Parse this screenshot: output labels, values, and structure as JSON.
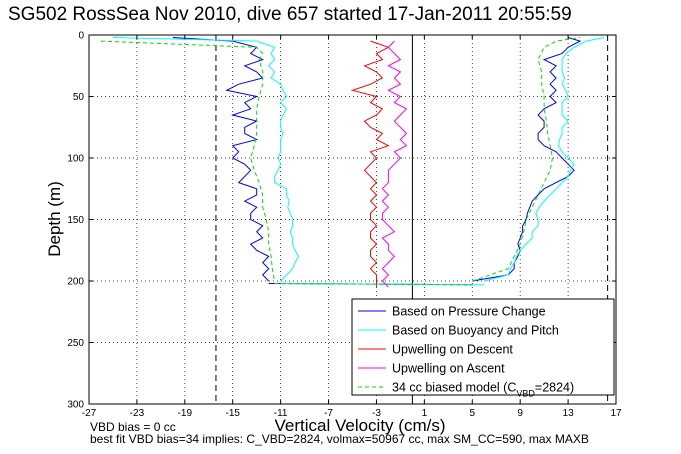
{
  "chart_data": {
    "type": "line",
    "title": "SG502 RossSea Nov 2010, dive 657 started 17-Jan-2011 20:55:59",
    "xlabel": "Vertical Velocity (cm/s)",
    "ylabel": "Depth (m)",
    "xlim": [
      -27,
      17
    ],
    "ylim": [
      0,
      300
    ],
    "y_reversed": true,
    "grid": true,
    "xticks": [
      "-27",
      "-23",
      "-19",
      "-15",
      "-11",
      "-7",
      "-3",
      "1",
      "5",
      "9",
      "13",
      "17"
    ],
    "yticks": [
      "0",
      "50",
      "100",
      "150",
      "200",
      "250",
      "300"
    ],
    "reference_lines": {
      "dashed_black_x": [
        -16.4,
        16.3
      ],
      "solid_black_x": [
        0
      ]
    },
    "legend_location": "bottom-right",
    "legend": [
      {
        "label": "Based on Pressure Change",
        "color": "#0000ff",
        "style": "solid"
      },
      {
        "label": "Based on Buoyancy and Pitch",
        "color": "#00ffff",
        "style": "solid"
      },
      {
        "label": "Upwelling on Descent",
        "color": "#ff0000",
        "style": "solid"
      },
      {
        "label": "Upwelling on Ascent",
        "color": "#ff00ff",
        "style": "solid"
      },
      {
        "label": "34 cc biased model (C",
        "label_sub": "VBD",
        "label_end": "=2824)",
        "color": "#00dd00",
        "style": "dashed"
      }
    ],
    "series": [
      {
        "name": "Based on Pressure Change",
        "color": "#0000ff",
        "descent": {
          "depth": [
            2,
            5,
            10,
            15,
            20,
            25,
            30,
            35,
            40,
            45,
            50,
            55,
            60,
            65,
            70,
            75,
            80,
            85,
            90,
            95,
            100,
            105,
            110,
            115,
            120,
            125,
            130,
            135,
            140,
            145,
            150,
            155,
            160,
            165,
            170,
            175,
            180,
            185,
            190,
            195,
            200
          ],
          "velocity": [
            -20,
            -15,
            -13,
            -13.5,
            -12.5,
            -14,
            -13,
            -12.5,
            -14.5,
            -15.5,
            -13,
            -14,
            -13.5,
            -15,
            -13,
            -14,
            -14,
            -13,
            -15,
            -14.5,
            -15,
            -14,
            -13.5,
            -14,
            -14.5,
            -13,
            -13,
            -14,
            -13,
            -13.5,
            -13.5,
            -12.5,
            -13,
            -12.5,
            -13.5,
            -13,
            -12,
            -12.5,
            -12,
            -12.5,
            -12
          ]
        },
        "ascent": {
          "depth": [
            200,
            195,
            190,
            185,
            180,
            175,
            170,
            165,
            160,
            155,
            150,
            145,
            140,
            135,
            130,
            125,
            120,
            115,
            110,
            105,
            100,
            95,
            90,
            85,
            80,
            75,
            70,
            65,
            60,
            55,
            50,
            45,
            40,
            35,
            30,
            25,
            20,
            15,
            10,
            5,
            2
          ],
          "velocity": [
            5,
            8,
            8.5,
            8.5,
            8.8,
            9,
            8.8,
            9,
            9.2,
            9.2,
            9.5,
            9.6,
            9.8,
            10,
            10.5,
            11,
            12,
            13,
            13.5,
            13,
            12.5,
            12,
            11,
            10.5,
            10.5,
            11,
            11,
            10.5,
            11,
            12,
            11.5,
            12,
            11.5,
            12,
            11.5,
            12,
            11,
            12.5,
            13,
            14,
            13
          ]
        }
      },
      {
        "name": "Based on Buoyancy and Pitch",
        "color": "#00ffff",
        "descent": {
          "depth": [
            2,
            5,
            10,
            15,
            20,
            25,
            30,
            35,
            40,
            45,
            50,
            55,
            60,
            65,
            70,
            75,
            80,
            85,
            90,
            95,
            100,
            105,
            110,
            115,
            120,
            125,
            130,
            135,
            140,
            145,
            150,
            155,
            160,
            165,
            170,
            175,
            180,
            185,
            190,
            195,
            200
          ],
          "velocity": [
            -25,
            -13,
            -11.5,
            -11.8,
            -11.5,
            -12,
            -11.5,
            -11.8,
            -11,
            -10.8,
            -10.5,
            -11,
            -10.5,
            -10.8,
            -11,
            -11,
            -10.8,
            -11,
            -11,
            -11,
            -11.2,
            -11,
            -11.2,
            -11.5,
            -11.5,
            -10.5,
            -10.5,
            -10.3,
            -10.4,
            -10.2,
            -10,
            -10,
            -10.2,
            -10,
            -10,
            -9.8,
            -9.5,
            -9.8,
            -10,
            -10.5,
            -11
          ]
        },
        "ascent": {
          "depth": [
            200,
            195,
            190,
            185,
            180,
            175,
            170,
            165,
            160,
            155,
            150,
            145,
            140,
            135,
            130,
            125,
            120,
            115,
            110,
            105,
            100,
            95,
            90,
            85,
            80,
            75,
            70,
            65,
            60,
            55,
            50,
            45,
            40,
            35,
            30,
            25,
            20,
            15,
            10,
            5,
            2
          ],
          "velocity": [
            6,
            8,
            8.2,
            8.5,
            8.7,
            9,
            9.5,
            10,
            10,
            10.5,
            10.5,
            10.3,
            10.6,
            11,
            11.5,
            12,
            12.5,
            13,
            13.2,
            13.5,
            13,
            12.5,
            12.2,
            12.3,
            12.5,
            12.5,
            13,
            12.5,
            12.5,
            12.5,
            13,
            12.8,
            12.5,
            12.7,
            12.5,
            12.5,
            12.5,
            12.8,
            13.5,
            14.5,
            16
          ]
        }
      },
      {
        "name": "Upwelling on Descent",
        "color": "#ff0000",
        "depth": [
          5,
          10,
          15,
          20,
          25,
          30,
          35,
          40,
          45,
          50,
          55,
          60,
          65,
          70,
          75,
          80,
          85,
          90,
          95,
          100,
          105,
          110,
          115,
          120,
          125,
          130,
          135,
          140,
          145,
          150,
          155,
          160,
          165,
          170,
          175,
          180,
          185,
          190,
          195,
          200,
          205
        ],
        "velocity": [
          -3.5,
          -2,
          -3,
          -2.5,
          -4,
          -3,
          -2.5,
          -3.5,
          -5,
          -3,
          -3.5,
          -2.5,
          -3,
          -4,
          -3.5,
          -2.5,
          -3,
          -2,
          -3.5,
          -3,
          -3.5,
          -4,
          -3.5,
          -3,
          -3.5,
          -3,
          -3.5,
          -3,
          -3.5,
          -3.5,
          -3,
          -3.5,
          -3.5,
          -3,
          -3.5,
          -3.5,
          -3,
          -3.5,
          -3,
          -3,
          -3
        ]
      },
      {
        "name": "Upwelling on Ascent",
        "color": "#ff00ff",
        "depth": [
          5,
          10,
          15,
          20,
          25,
          30,
          35,
          40,
          45,
          50,
          55,
          60,
          65,
          70,
          75,
          80,
          85,
          90,
          95,
          100,
          105,
          110,
          115,
          120,
          125,
          130,
          135,
          140,
          145,
          150,
          155,
          160,
          165,
          170,
          175,
          180,
          185,
          190,
          195,
          200,
          205
        ],
        "velocity": [
          -1.5,
          -2,
          -1.5,
          -1,
          -2,
          -1,
          -1.5,
          -1,
          -2,
          -1,
          -1.5,
          -0.5,
          -1,
          -1.5,
          -1,
          -0.5,
          -1,
          -0.5,
          -1.5,
          -1,
          -1.5,
          -2,
          -2,
          -2,
          -2.5,
          -2,
          -2.5,
          -2,
          -2.5,
          -2.5,
          -2,
          -1.5,
          -2.5,
          -2,
          -2,
          -1.5,
          -2,
          -2.5,
          -2,
          -2.5,
          -2
        ]
      },
      {
        "name": "34 cc biased model (CVBD=2824)",
        "color": "#00dd00",
        "dashed": true,
        "descent": {
          "depth": [
            5,
            10,
            15,
            20,
            30,
            40,
            50,
            60,
            70,
            80,
            90,
            100,
            110,
            120,
            130,
            140,
            150,
            160,
            170,
            180,
            190,
            200
          ],
          "velocity": [
            -26,
            -13,
            -12.5,
            -12.8,
            -12.5,
            -12.5,
            -12.8,
            -13,
            -13,
            -13,
            -13.2,
            -13.5,
            -13.2,
            -12.8,
            -12.5,
            -12.5,
            -12.2,
            -12,
            -12,
            -11.8,
            -11.7,
            -11.5
          ]
        },
        "ascent": {
          "depth": [
            200,
            190,
            180,
            170,
            160,
            150,
            140,
            130,
            120,
            110,
            100,
            90,
            80,
            70,
            60,
            50,
            40,
            30,
            20,
            10,
            5,
            2
          ],
          "velocity": [
            5,
            8,
            8.5,
            9,
            9.3,
            9.5,
            10,
            10.5,
            11,
            11.5,
            11.7,
            11.5,
            11.3,
            11.2,
            11,
            11,
            10.8,
            10.8,
            10.5,
            11,
            12,
            14
          ]
        }
      }
    ]
  },
  "footer": {
    "line1": "VBD bias = 0 cc",
    "line2": "best fit VBD bias=34 implies: C_VBD=2824, volmax=50967 cc, max SM_CC=590, max MAXB"
  }
}
